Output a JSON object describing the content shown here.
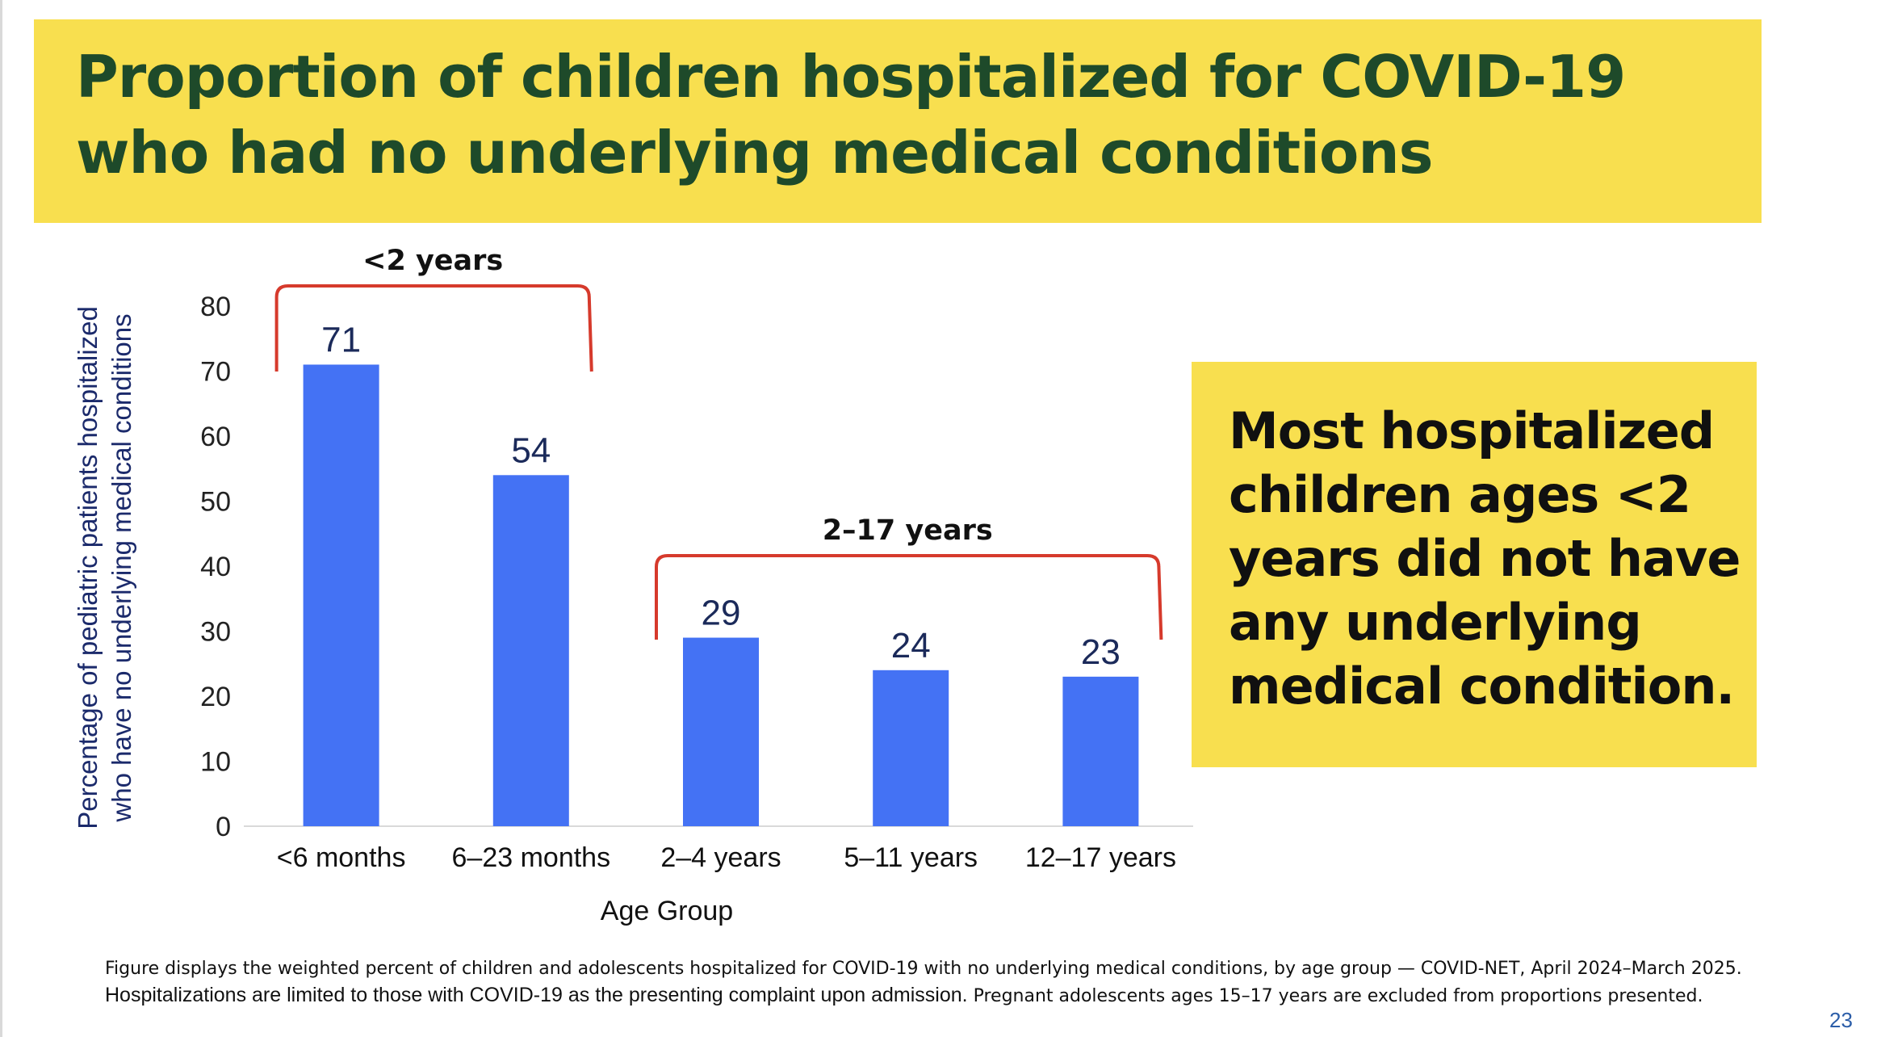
{
  "slide": {
    "title": "Proportion of children hospitalized for COVID-19 who had no underlying medical conditions",
    "callout": "Most hospitalized children ages <2 years did not have any underlying medical condition.",
    "footnote_line1": "Figure displays the weighted percent of children and adolescents hospitalized for COVID-19 with no underlying medical conditions, by age group — COVID-NET, April 2024–March 2025.",
    "footnote_line2a": "Hospitalizations are limited to those with COVID-19 as the presenting complaint upon admission.",
    "footnote_line2b": "Pregnant adolescents ages 15–17 years are excluded from proportions presented.",
    "page_number": "23"
  },
  "colors": {
    "title_band": "#f8df4f",
    "title_text": "#1e4a2a",
    "bar": "#4472f4",
    "bracket": "#d63a2c",
    "axis_title": "#1b2a6b",
    "page_number": "#2b5da8"
  },
  "chart_data": {
    "type": "bar",
    "categories": [
      "<6 months",
      "6–23 months",
      "2–4 years",
      "5–11 years",
      "12–17 years"
    ],
    "values": [
      71,
      54,
      29,
      24,
      23
    ],
    "data_labels": [
      "71",
      "54",
      "29",
      "24",
      "23"
    ],
    "xlabel": "Age Group",
    "ylabel_line1": "Percentage of pediatric patients hospitalized",
    "ylabel_line2": "who have no underlying medical conditions",
    "ylim": [
      0,
      80
    ],
    "yticks": [
      0,
      10,
      20,
      30,
      40,
      50,
      60,
      70,
      80
    ],
    "grid": false,
    "brackets": [
      {
        "label": "<2 years",
        "from": 0,
        "to": 1
      },
      {
        "label": "2–17 years",
        "from": 2,
        "to": 4
      }
    ]
  }
}
